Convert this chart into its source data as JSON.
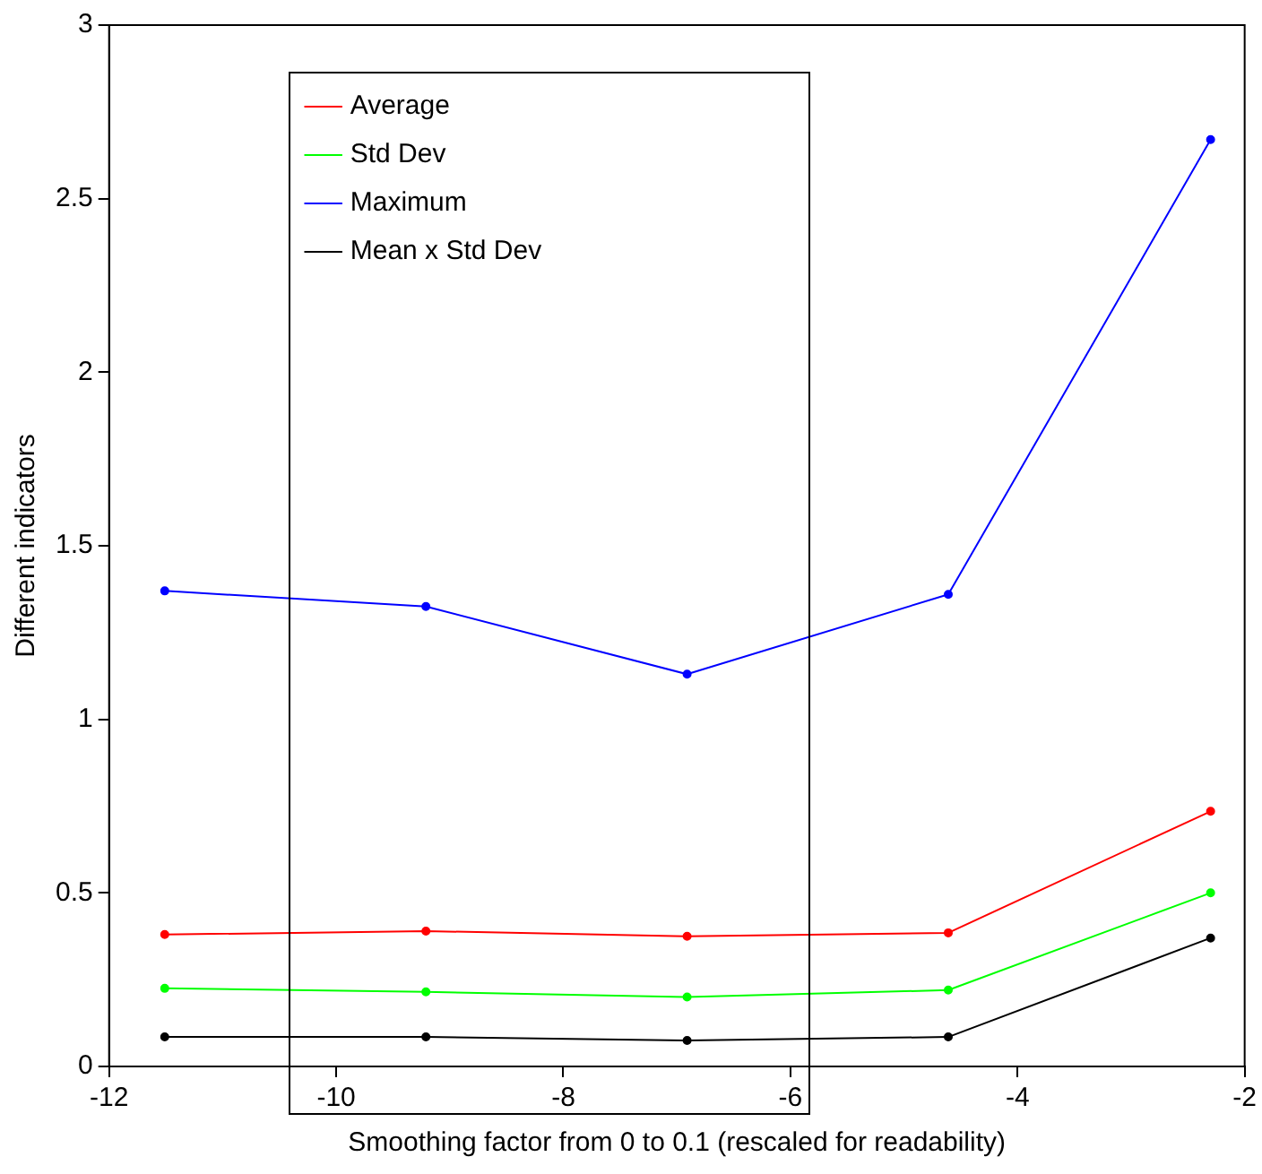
{
  "chart_data": {
    "type": "line",
    "xlabel": "Smoothing factor from 0 to 0.1 (rescaled for readability)",
    "ylabel": "Different indicators",
    "x": [
      -11.51,
      -9.21,
      -6.91,
      -4.61,
      -2.3
    ],
    "series": [
      {
        "name": "Average",
        "color": "#ff0000",
        "values": [
          0.38,
          0.39,
          0.375,
          0.385,
          0.735
        ]
      },
      {
        "name": "Std Dev",
        "color": "#00ff00",
        "values": [
          0.225,
          0.215,
          0.2,
          0.22,
          0.5
        ]
      },
      {
        "name": "Maximum",
        "color": "#0000ff",
        "values": [
          1.37,
          1.325,
          1.13,
          1.36,
          2.67
        ]
      },
      {
        "name": "Mean x Std Dev",
        "color": "#000000",
        "values": [
          0.085,
          0.085,
          0.075,
          0.085,
          0.37
        ]
      }
    ],
    "xlim": [
      -12,
      -2
    ],
    "xticks": [
      -12,
      -10,
      -8,
      -6,
      -4,
      -2
    ],
    "ylim": [
      0,
      3
    ],
    "yticks": [
      0,
      0.5,
      1,
      1.5,
      2,
      2.5,
      3
    ],
    "grid": false,
    "legend": "top left",
    "marker": "circle",
    "line_style": "solid"
  }
}
